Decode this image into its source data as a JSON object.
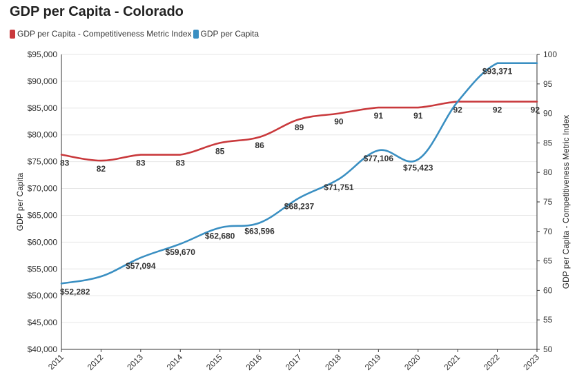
{
  "chart_data": {
    "type": "line",
    "title": "GDP per Capita - Colorado",
    "x": [
      "2011",
      "2012",
      "2013",
      "2014",
      "2015",
      "2016",
      "2017",
      "2018",
      "2019",
      "2020",
      "2021",
      "2022",
      "2023"
    ],
    "legend": [
      "GDP per Capita - Competitiveness Metric Index",
      "GDP per Capita"
    ],
    "legend_placement": "top-left",
    "ylabel_left": "GDP per Capita",
    "ylabel_right": "GDP per Capita - Competitiveness Metric Index",
    "ylim_left": [
      40000,
      95000
    ],
    "ylim_right": [
      50,
      100
    ],
    "yticks_left": [
      "$40,000",
      "$45,000",
      "$50,000",
      "$55,000",
      "$60,000",
      "$65,000",
      "$70,000",
      "$75,000",
      "$80,000",
      "$85,000",
      "$90,000",
      "$95,000"
    ],
    "yticks_right": [
      "50",
      "55",
      "60",
      "65",
      "70",
      "75",
      "80",
      "85",
      "90",
      "95",
      "100"
    ],
    "grid": true,
    "series": [
      {
        "name": "GDP per Capita - Competitiveness Metric Index",
        "axis": "right",
        "color": "#c9393c",
        "values": [
          83,
          82,
          83,
          83,
          85,
          86,
          89,
          90,
          91,
          91,
          92,
          92,
          92
        ],
        "labels": [
          "83",
          "82",
          "83",
          "83",
          "85",
          "86",
          "89",
          "90",
          "91",
          "91",
          "92",
          "92",
          "92"
        ]
      },
      {
        "name": "GDP per Capita",
        "axis": "left",
        "color": "#3a8fc2",
        "values": [
          52282,
          53600,
          57094,
          59670,
          62680,
          63596,
          68237,
          71751,
          77106,
          75423,
          86200,
          93371,
          93371
        ],
        "labels": [
          "$52,282",
          "",
          "$57,094",
          "$59,670",
          "$62,680",
          "$63,596",
          "$68,237",
          "$71,751",
          "$77,106",
          "$75,423",
          "",
          "$93,371",
          ""
        ]
      }
    ]
  }
}
